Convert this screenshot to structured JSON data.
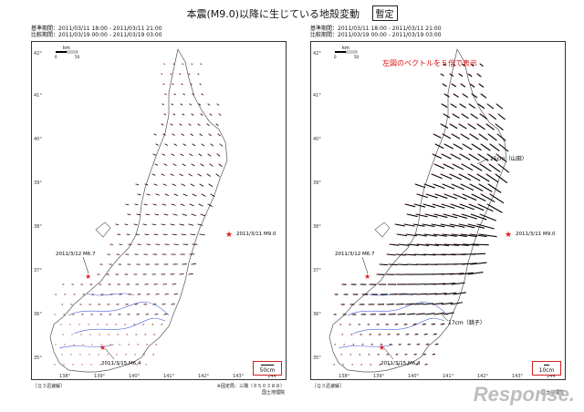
{
  "header": {
    "title": "本震(M9.0)以降に生じている地殻変動",
    "badge": "暫定"
  },
  "panels": [
    {
      "ref_period": "基準期間：2011/03/11 18:00 - 2011/03/11 21:00",
      "cmp_period": "比較期間：2011/03/19 00:00 - 2011/03/19 03:00",
      "scale_km_label": "km",
      "scale_km_ticks": [
        "0",
        "50"
      ],
      "lat_ticks": [
        "42°",
        "41°",
        "40°",
        "39°",
        "38°",
        "37°",
        "36°",
        "35°"
      ],
      "lon_ticks": [
        "138°",
        "139°",
        "140°",
        "141°",
        "142°",
        "143°",
        "144°"
      ],
      "quake_main": "2011/3/11 M9.0",
      "quake_a": "2011/3/12 M6.7",
      "quake_b": "2011/3/15 M6.4",
      "scale_vector_label": "50cm",
      "footer_left": "［Ｑ３迅速解］",
      "footer_right_1": "※固定局：三隅（９５０３８８）",
      "footer_right_2": "国土地理院"
    },
    {
      "ref_period": "基準期間：2011/03/11 18:00 - 2011/03/11 21:00",
      "cmp_period": "比較期間：2011/03/19 00:00 - 2011/03/19 03:00",
      "scale_km_label": "km",
      "scale_km_ticks": [
        "0",
        "50"
      ],
      "lat_ticks": [
        "42°",
        "41°",
        "40°",
        "39°",
        "38°",
        "37°",
        "36°",
        "35°"
      ],
      "lon_ticks": [
        "138°",
        "139°",
        "140°",
        "141°",
        "142°",
        "143°",
        "144°"
      ],
      "note": "左図のベクトルを５倍で表示",
      "quake_main": "2011/3/11 M9.0",
      "quake_a": "2011/3/12 M6.7",
      "quake_b": "2011/3/15 M6.4",
      "label_yamada": "25cm（山田）",
      "label_choshi": "17cm（銚子）",
      "scale_vector_label": "10cm",
      "footer_left": "［Ｑ３迅速解］",
      "footer_right_2": "国土地理院"
    }
  ],
  "colors": {
    "star": "#e11d1d",
    "river": "#4a5bd6",
    "coast": "#555555",
    "vector": "#000000",
    "station_fixed": "#cc2222"
  },
  "watermark": "Response."
}
